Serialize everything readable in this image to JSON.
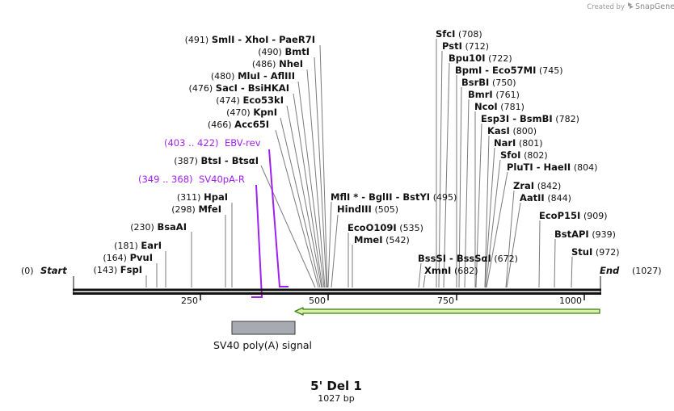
{
  "credit": {
    "created_by": "Created by",
    "brand": "SnapGene"
  },
  "map": {
    "title": "5' Del 1",
    "length_label": "1027 bp",
    "length": 1027,
    "ticks": [
      "250",
      "500",
      "750",
      "1000"
    ],
    "start_label": "Start",
    "start_pos": "(0)",
    "end_label": "End",
    "end_pos": "(1027)"
  },
  "sites": [
    {
      "pos": "(491)",
      "name": "SmlI",
      "sep1": " - ",
      "name2": "XhoI",
      "sep2": " - ",
      "name3": "PaeR7I"
    },
    {
      "pos": "(490)",
      "name": "BmtI"
    },
    {
      "pos": "(486)",
      "name": "NheI"
    },
    {
      "pos": "(480)",
      "name": "MluI",
      "sep1": " - ",
      "name2": "AflIII"
    },
    {
      "pos": "(476)",
      "name": "SacI",
      "sep1": " - ",
      "name2": "BsiHKAI"
    },
    {
      "pos": "(474)",
      "name": "Eco53kI"
    },
    {
      "pos": "(470)",
      "name": "KpnI"
    },
    {
      "pos": "(466)",
      "name": "Acc65I"
    },
    {
      "pos": "(387)",
      "name": "BtsI",
      "sep1": " - ",
      "name2": "BtsαI"
    },
    {
      "pos": "(311)",
      "name": "HpaI"
    },
    {
      "pos": "(298)",
      "name": "MfeI"
    },
    {
      "pos": "(230)",
      "name": "BsaAI"
    },
    {
      "pos": "(181)",
      "name": "EarI"
    },
    {
      "pos": "(164)",
      "name": "PvuI"
    },
    {
      "pos": "(143)",
      "name": "FspI"
    },
    {
      "pos": "(708)",
      "name": "SfcI"
    },
    {
      "pos": "(712)",
      "name": "PstI"
    },
    {
      "pos": "(722)",
      "name": "Bpu10I"
    },
    {
      "pos": "(745)",
      "name": "BpmI",
      "sep1": " - ",
      "name2": "Eco57MI"
    },
    {
      "pos": "(750)",
      "name": "BsrBI"
    },
    {
      "pos": "(761)",
      "name": "BmrI"
    },
    {
      "pos": "(781)",
      "name": "NcoI"
    },
    {
      "pos": "(782)",
      "name": "Esp3I",
      "sep1": " - ",
      "name2": "BsmBI"
    },
    {
      "pos": "(800)",
      "name": "KasI"
    },
    {
      "pos": "(801)",
      "name": "NarI"
    },
    {
      "pos": "(802)",
      "name": "SfoI"
    },
    {
      "pos": "(804)",
      "name": "PluTI",
      "sep1": " - ",
      "name2": "HaeII"
    },
    {
      "pos": "(842)",
      "name": "ZraI"
    },
    {
      "pos": "(844)",
      "name": "AatII"
    },
    {
      "pos": "(909)",
      "name": "EcoP15I"
    },
    {
      "pos": "(939)",
      "name": "BstAPI"
    },
    {
      "pos": "(972)",
      "name": "StuI"
    },
    {
      "pos": "(495)",
      "name": "MflI",
      "star": " *",
      "sep1": " - ",
      "name2": "BglII",
      "sep2": " - ",
      "name3": "BstYI"
    },
    {
      "pos": "(505)",
      "name": "HindIII"
    },
    {
      "pos": "(535)",
      "name": "EcoO109I"
    },
    {
      "pos": "(542)",
      "name": "MmeI"
    },
    {
      "pos": "(672)",
      "name": "BssSI",
      "sep1": " - ",
      "name2": "BssSαI"
    },
    {
      "pos": "(682)",
      "name": "XmnI"
    }
  ],
  "primers": [
    {
      "range": "(403 .. 422)",
      "name": "EBV-rev"
    },
    {
      "range": "(349 .. 368)",
      "name": "SV40pA-R"
    }
  ],
  "features": [
    {
      "name": "SV40 poly(A) signal"
    }
  ],
  "colors": {
    "primer": "#a020f0",
    "arrow_fill": "#d8f0a8",
    "arrow_stroke": "#3a7d12",
    "feature_fill": "#a7aab0"
  }
}
